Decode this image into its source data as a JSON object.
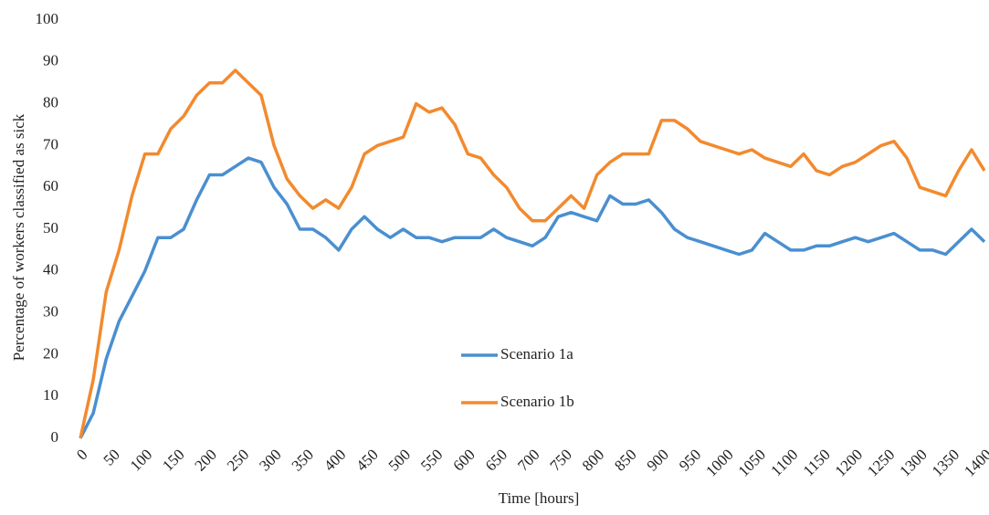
{
  "chart_data": {
    "type": "line",
    "x_label": "Time [hours]",
    "y_label": "Percentage of workers classified as sick",
    "x": [
      0,
      20,
      40,
      60,
      80,
      100,
      120,
      140,
      160,
      180,
      200,
      220,
      240,
      260,
      280,
      300,
      320,
      340,
      360,
      380,
      400,
      420,
      440,
      460,
      480,
      500,
      520,
      540,
      560,
      580,
      600,
      620,
      640,
      660,
      680,
      700,
      720,
      740,
      760,
      780,
      800,
      820,
      840,
      860,
      880,
      900,
      920,
      940,
      960,
      980,
      1000,
      1020,
      1040,
      1060,
      1080,
      1100,
      1120,
      1140,
      1160,
      1180,
      1200,
      1220,
      1240,
      1260,
      1280,
      1300,
      1320,
      1340,
      1360,
      1380,
      1400
    ],
    "series": [
      {
        "name": "Scenario 1a",
        "color": "#4a8fd0",
        "values": [
          0,
          6,
          19,
          28,
          34,
          40,
          48,
          48,
          50,
          57,
          63,
          63,
          65,
          67,
          66,
          60,
          56,
          50,
          50,
          48,
          45,
          50,
          53,
          50,
          48,
          50,
          48,
          48,
          47,
          48,
          48,
          48,
          50,
          48,
          47,
          46,
          48,
          53,
          54,
          53,
          52,
          58,
          56,
          56,
          57,
          54,
          50,
          48,
          47,
          46,
          45,
          44,
          45,
          49,
          47,
          45,
          45,
          46,
          46,
          47,
          48,
          47,
          48,
          49,
          47,
          45,
          45,
          44,
          47,
          50,
          47
        ]
      },
      {
        "name": "Scenario 1b",
        "color": "#f28a2e",
        "values": [
          0,
          14,
          35,
          45,
          58,
          68,
          68,
          74,
          77,
          82,
          85,
          85,
          88,
          85,
          82,
          70,
          62,
          58,
          55,
          57,
          55,
          60,
          68,
          70,
          71,
          72,
          80,
          78,
          79,
          75,
          68,
          67,
          63,
          60,
          55,
          52,
          52,
          55,
          58,
          55,
          63,
          66,
          68,
          68,
          68,
          76,
          76,
          74,
          71,
          70,
          69,
          68,
          69,
          67,
          66,
          65,
          68,
          64,
          63,
          65,
          66,
          68,
          70,
          71,
          67,
          60,
          59,
          58,
          64,
          69,
          64
        ]
      }
    ],
    "xlim": [
      0,
      1400
    ],
    "ylim": [
      0,
      100
    ],
    "xticks": [
      0,
      50,
      100,
      150,
      200,
      250,
      300,
      350,
      400,
      450,
      500,
      550,
      600,
      650,
      700,
      750,
      800,
      850,
      900,
      950,
      1000,
      1050,
      1100,
      1150,
      1200,
      1250,
      1300,
      1350,
      1400
    ],
    "yticks": [
      0,
      10,
      20,
      30,
      40,
      50,
      60,
      70,
      80,
      90,
      100
    ],
    "grid": false,
    "legend_position": "center"
  }
}
